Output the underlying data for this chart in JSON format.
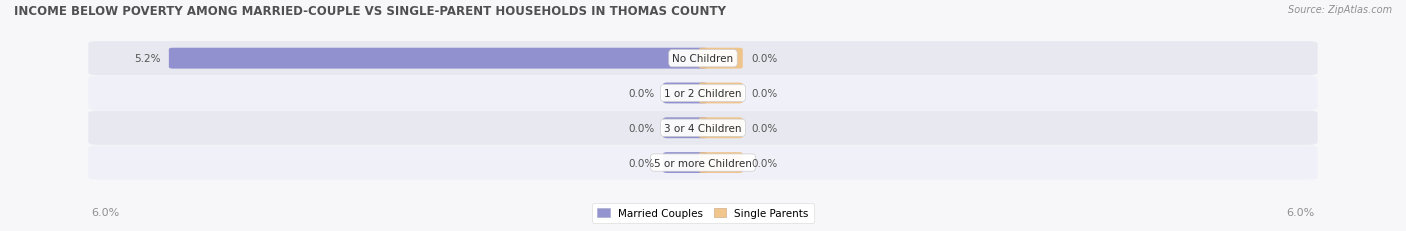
{
  "title": "INCOME BELOW POVERTY AMONG MARRIED-COUPLE VS SINGLE-PARENT HOUSEHOLDS IN THOMAS COUNTY",
  "source": "Source: ZipAtlas.com",
  "categories": [
    "No Children",
    "1 or 2 Children",
    "3 or 4 Children",
    "5 or more Children"
  ],
  "married_values": [
    5.2,
    0.0,
    0.0,
    0.0
  ],
  "single_values": [
    0.0,
    0.0,
    0.0,
    0.0
  ],
  "max_val": 6.0,
  "married_color": "#8888cc",
  "single_color": "#f0c080",
  "married_stub": 0.35,
  "single_stub": 0.35,
  "row_bg_colors": [
    "#e8e8f0",
    "#f0f0f8"
  ],
  "row_alt_colors": [
    "#e4e4ee",
    "#ebebf5"
  ],
  "title_color": "#505050",
  "axis_label_color": "#909090",
  "legend_married": "Married Couples",
  "legend_single": "Single Parents",
  "fig_bg": "#f7f7fa"
}
